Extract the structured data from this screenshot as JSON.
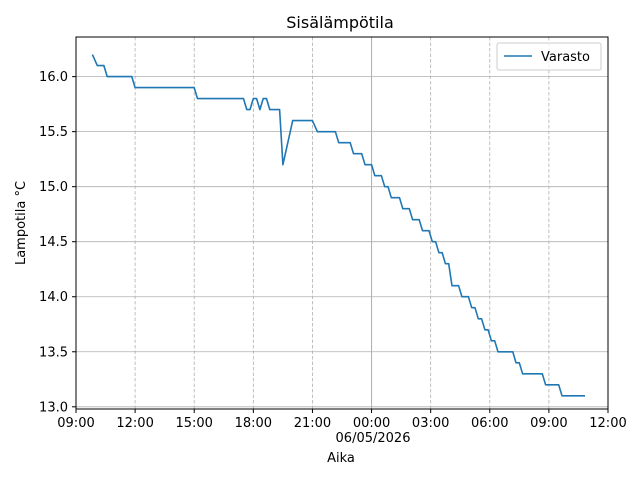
{
  "chart_data": {
    "type": "line",
    "title": "Sisälämpötila",
    "xlabel": "Aika",
    "ylabel": "Lampotila °C",
    "date_label": "06/05/2026",
    "x_ticks": [
      "09:00",
      "12:00",
      "15:00",
      "18:00",
      "21:00",
      "00:00",
      "03:00",
      "06:00",
      "09:00",
      "12:00"
    ],
    "y_ticks": [
      "13.0",
      "13.5",
      "14.0",
      "14.5",
      "15.0",
      "15.5",
      "16.0"
    ],
    "xlim": [
      "05/05/2026 09:00",
      "06/05/2026 12:00"
    ],
    "ylim": [
      12.98,
      16.36
    ],
    "grid": true,
    "legend_position": "top-right",
    "series": [
      {
        "name": "Varasto",
        "color": "#1f77b4",
        "x": [
          "05/05/2026 09:50",
          "05/05/2026 10:05",
          "05/05/2026 10:25",
          "05/05/2026 10:35",
          "05/05/2026 11:50",
          "05/05/2026 12:00",
          "05/05/2026 15:00",
          "05/05/2026 15:10",
          "05/05/2026 17:30",
          "05/05/2026 17:40",
          "05/05/2026 17:50",
          "05/05/2026 18:00",
          "05/05/2026 18:10",
          "05/05/2026 18:20",
          "05/05/2026 18:30",
          "05/05/2026 18:40",
          "05/05/2026 18:50",
          "05/05/2026 19:20",
          "05/05/2026 19:30",
          "05/05/2026 19:45",
          "05/05/2026 20:00",
          "05/05/2026 21:00",
          "05/05/2026 21:15",
          "05/05/2026 22:10",
          "05/05/2026 22:20",
          "05/05/2026 22:55",
          "05/05/2026 23:05",
          "05/05/2026 23:30",
          "05/05/2026 23:40",
          "06/05/2026 00:00",
          "06/05/2026 00:10",
          "06/05/2026 00:30",
          "06/05/2026 00:40",
          "06/05/2026 00:50",
          "06/05/2026 01:00",
          "06/05/2026 01:25",
          "06/05/2026 01:35",
          "06/05/2026 01:55",
          "06/05/2026 02:05",
          "06/05/2026 02:25",
          "06/05/2026 02:35",
          "06/05/2026 02:55",
          "06/05/2026 03:05",
          "06/05/2026 03:15",
          "06/05/2026 03:25",
          "06/05/2026 03:35",
          "06/05/2026 03:45",
          "06/05/2026 03:55",
          "06/05/2026 04:05",
          "06/05/2026 04:25",
          "06/05/2026 04:35",
          "06/05/2026 04:55",
          "06/05/2026 05:05",
          "06/05/2026 05:15",
          "06/05/2026 05:25",
          "06/05/2026 05:35",
          "06/05/2026 05:45",
          "06/05/2026 05:55",
          "06/05/2026 06:05",
          "06/05/2026 06:15",
          "06/05/2026 06:25",
          "06/05/2026 07:10",
          "06/05/2026 07:20",
          "06/05/2026 07:30",
          "06/05/2026 07:40",
          "06/05/2026 08:40",
          "06/05/2026 08:50",
          "06/05/2026 09:30",
          "06/05/2026 09:40",
          "06/05/2026 10:50"
        ],
        "values": [
          16.2,
          16.1,
          16.1,
          16.0,
          16.0,
          15.9,
          15.9,
          15.8,
          15.8,
          15.7,
          15.7,
          15.8,
          15.8,
          15.7,
          15.8,
          15.8,
          15.7,
          15.7,
          15.2,
          15.4,
          15.6,
          15.6,
          15.5,
          15.5,
          15.4,
          15.4,
          15.3,
          15.3,
          15.2,
          15.2,
          15.1,
          15.1,
          15.0,
          15.0,
          14.9,
          14.9,
          14.8,
          14.8,
          14.7,
          14.7,
          14.6,
          14.6,
          14.5,
          14.5,
          14.4,
          14.4,
          14.3,
          14.3,
          14.1,
          14.1,
          14.0,
          14.0,
          13.9,
          13.9,
          13.8,
          13.8,
          13.7,
          13.7,
          13.6,
          13.6,
          13.5,
          13.5,
          13.4,
          13.4,
          13.3,
          13.3,
          13.2,
          13.2,
          13.1,
          13.1
        ]
      }
    ]
  }
}
